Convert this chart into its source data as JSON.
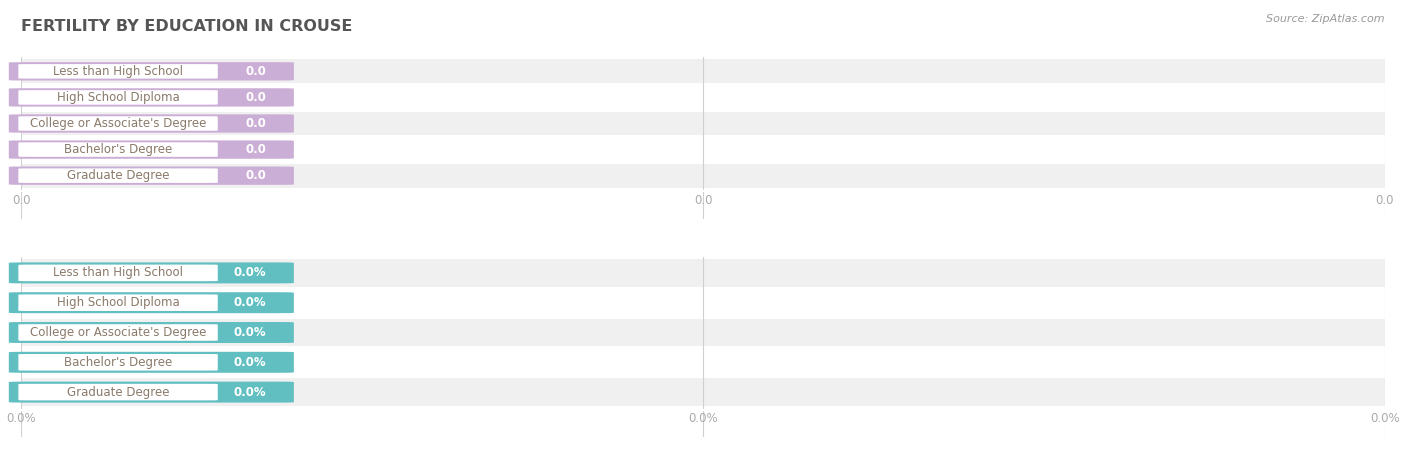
{
  "title": "FERTILITY BY EDUCATION IN CROUSE",
  "source": "Source: ZipAtlas.com",
  "categories": [
    "Less than High School",
    "High School Diploma",
    "College or Associate's Degree",
    "Bachelor's Degree",
    "Graduate Degree"
  ],
  "top_values": [
    0.0,
    0.0,
    0.0,
    0.0,
    0.0
  ],
  "bottom_values": [
    0.0,
    0.0,
    0.0,
    0.0,
    0.0
  ],
  "top_bar_color": "#cbaed6",
  "bottom_bar_color": "#62bfc1",
  "label_text_color": "#8a7a6a",
  "title_color": "#555555",
  "bg_color": "#ffffff",
  "row_alt_color": "#f0f0f0",
  "grid_color": "#d0d0d0",
  "source_color": "#999999",
  "value_text_color": "#ffffff",
  "tick_label_color": "#aaaaaa",
  "top_tick_labels": [
    "0.0",
    "0.0",
    "0.0"
  ],
  "bottom_tick_labels": [
    "0.0%",
    "0.0%",
    "0.0%"
  ]
}
